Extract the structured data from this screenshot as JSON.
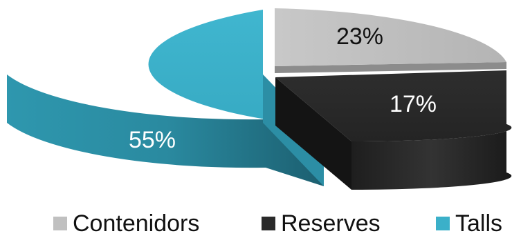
{
  "chart_data": {
    "type": "pie",
    "style": "3d-exploded",
    "title": "",
    "legend_position": "bottom",
    "slices": [
      {
        "name": "Contenidors",
        "value": 23,
        "label": "23%",
        "color": "#c0c0c0"
      },
      {
        "name": "Reserves",
        "value": 17,
        "label": "17%",
        "color": "#2a2a2a"
      },
      {
        "name": "Talls",
        "value": 55,
        "label": "55%",
        "color": "#3bb0c9"
      }
    ]
  }
}
